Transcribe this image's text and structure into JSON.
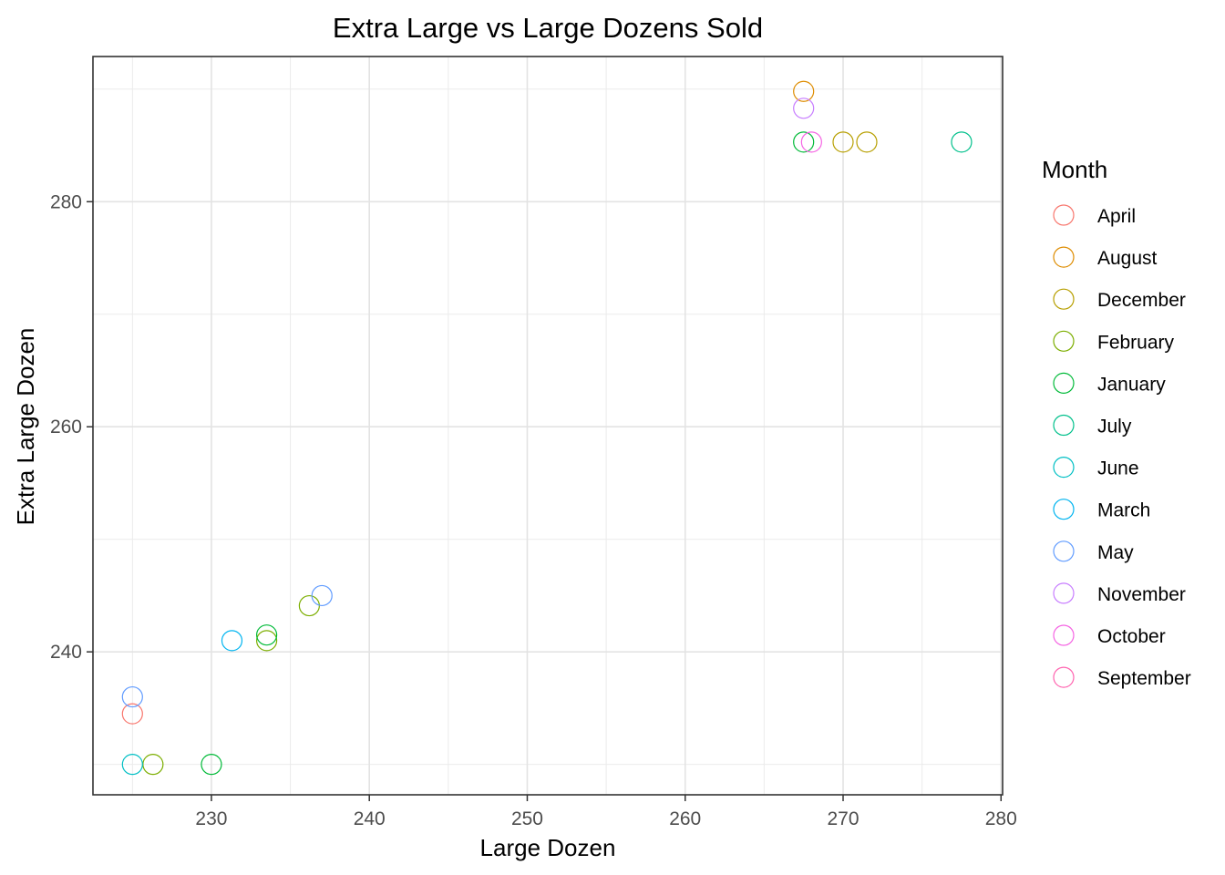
{
  "chart_data": {
    "type": "scatter",
    "title": "Extra Large vs Large Dozens Sold",
    "xlabel": "Large Dozen",
    "ylabel": "Extra Large Dozen",
    "xlim": [
      222.5,
      280.1
    ],
    "ylim": [
      227.3,
      292.9
    ],
    "x_ticks": [
      230,
      240,
      250,
      260,
      270,
      280
    ],
    "y_ticks": [
      240,
      260,
      280
    ],
    "x_tick_labels": [
      "230",
      "240",
      "250",
      "260",
      "270",
      "280"
    ],
    "y_tick_labels": [
      "240",
      "260",
      "280"
    ],
    "grid": true,
    "marker": "open-circle",
    "legend_title": "Month",
    "legend_position": "right",
    "series": [
      {
        "name": "April",
        "color": "#F8766D",
        "points": [
          [
            225.0,
            234.5
          ]
        ]
      },
      {
        "name": "August",
        "color": "#DE8C00",
        "points": [
          [
            267.5,
            289.8
          ]
        ]
      },
      {
        "name": "December",
        "color": "#B79F00",
        "points": [
          [
            270.0,
            285.3
          ],
          [
            271.5,
            285.3
          ]
        ]
      },
      {
        "name": "February",
        "color": "#7CAE00",
        "points": [
          [
            226.3,
            230.0
          ],
          [
            233.5,
            241.0
          ],
          [
            236.2,
            244.1
          ]
        ]
      },
      {
        "name": "January",
        "color": "#00BA38",
        "points": [
          [
            230.0,
            230.0
          ],
          [
            233.5,
            241.5
          ],
          [
            267.5,
            285.3
          ]
        ]
      },
      {
        "name": "July",
        "color": "#00C08B",
        "points": [
          [
            277.5,
            285.3
          ]
        ]
      },
      {
        "name": "June",
        "color": "#00BFC4",
        "points": [
          [
            225.0,
            230.0
          ]
        ]
      },
      {
        "name": "March",
        "color": "#00B4F0",
        "points": [
          [
            231.3,
            241.0
          ]
        ]
      },
      {
        "name": "May",
        "color": "#619CFF",
        "points": [
          [
            225.0,
            236.0
          ],
          [
            237.0,
            245.0
          ]
        ]
      },
      {
        "name": "November",
        "color": "#C77CFF",
        "points": [
          [
            267.5,
            288.3
          ]
        ]
      },
      {
        "name": "October",
        "color": "#F564E3",
        "points": [
          [
            268.0,
            285.3
          ]
        ]
      },
      {
        "name": "September",
        "color": "#FF64B0",
        "points": []
      }
    ]
  }
}
